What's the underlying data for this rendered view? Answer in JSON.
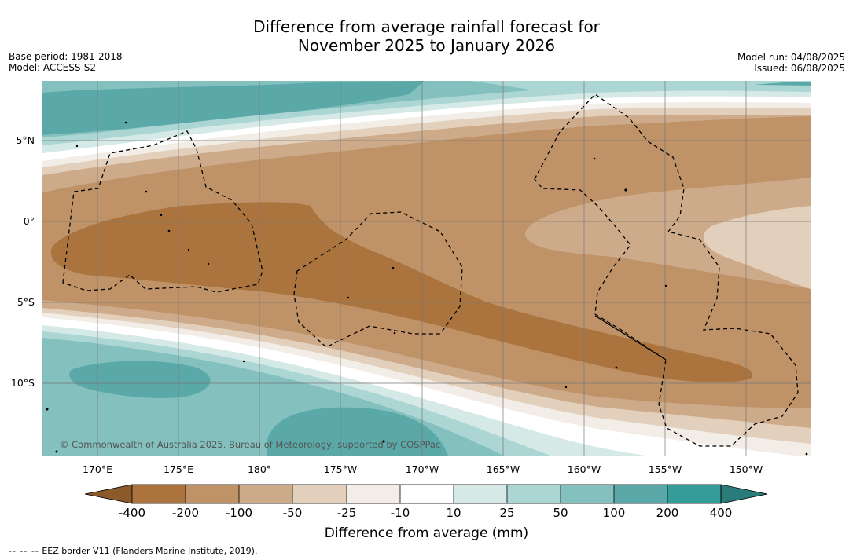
{
  "title_line1": "Difference from average rainfall forecast for",
  "title_line2": "November 2025 to January 2026",
  "meta_left": {
    "base_period": "Base period: 1981-2018",
    "model": "Model: ACCESS-S2"
  },
  "meta_right": {
    "model_run": "Model run: 04/08/2025",
    "issued": "Issued: 06/08/2025"
  },
  "map": {
    "lon_labels": [
      "170°E",
      "175°E",
      "180°",
      "175°W",
      "170°W",
      "165°W",
      "160°W",
      "155°W",
      "150°W"
    ],
    "lat_labels": [
      "5°N",
      "0°",
      "5°S",
      "10°S"
    ],
    "copyright": "© Commonwealth of Australia 2025, Bureau of Meteorology, supported by COSPPac"
  },
  "colorbar": {
    "label": "Difference from average (mm)",
    "ticks": [
      "-400",
      "-200",
      "-100",
      "-50",
      "-25",
      "-10",
      "10",
      "25",
      "50",
      "100",
      "200",
      "400"
    ],
    "colors": {
      "lt_minus400": "#8a5a2b",
      "m400_m200": "#ab743e",
      "m200_m100": "#bf9268",
      "m100_m50": "#cdab8a",
      "m50_m25": "#e2d0bd",
      "m25_m10": "#f3ede7",
      "m10_10": "#ffffff",
      "p10_p25": "#d5e9e7",
      "p25_p50": "#acd6d4",
      "p50_p100": "#83c0be",
      "p100_p200": "#5aa9a8",
      "p200_p400": "#359c99",
      "gt_400": "#2a7c7a"
    }
  },
  "footnote": {
    "dashes": "-- -- --",
    "text": "EEZ border V11 (Flanders Marine Institute, 2019)."
  }
}
